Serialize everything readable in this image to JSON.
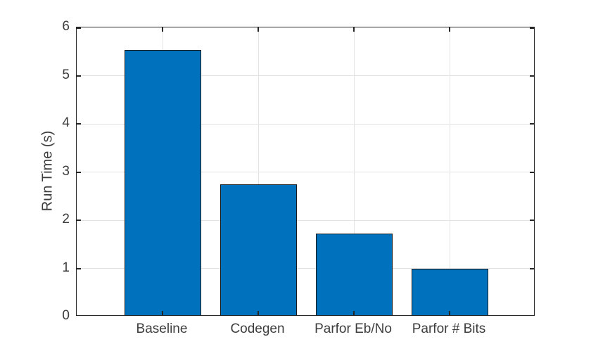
{
  "chart_data": {
    "type": "bar",
    "categories": [
      "Baseline",
      "Codegen",
      "Parfor Eb/No",
      "Parfor # Bits"
    ],
    "values": [
      5.5,
      2.72,
      1.7,
      0.96
    ],
    "title": "",
    "xlabel": "",
    "ylabel": "Run Time (s)",
    "ylim": [
      0,
      6
    ],
    "yticks": [
      0,
      1,
      2,
      3,
      4,
      5,
      6
    ],
    "grid": true,
    "legend": "none",
    "bar_width_ratio": 0.8,
    "colors": {
      "bar_fill": "#0072BD",
      "bar_edge": "#1a1a1a",
      "axis_box": "#262626",
      "gridline": "#e3e3e3",
      "tick_label": "#3d3d3d",
      "background": "#ffffff"
    }
  }
}
